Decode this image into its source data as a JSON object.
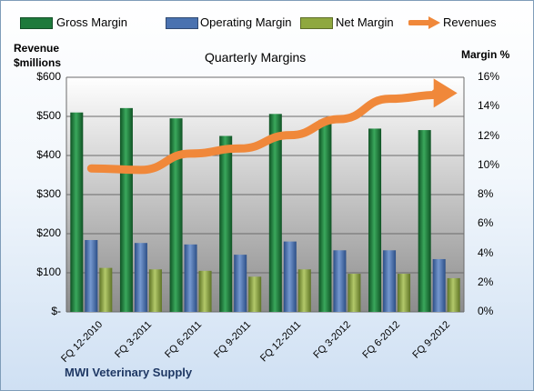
{
  "chart_data": {
    "type": "bar",
    "title": "Quarterly Margins",
    "company": "MWI Veterinary Supply",
    "categories": [
      "FQ 12-2010",
      "FQ 3-2011",
      "FQ 6-2011",
      "FQ 9-2011",
      "FQ 12-2011",
      "FQ 3-2012",
      "FQ 6-2012",
      "FQ 9-2012"
    ],
    "series": [
      {
        "name": "Gross Margin",
        "axis": "right",
        "color": "#1e7a3c",
        "values": [
          13.6,
          13.9,
          13.2,
          12.0,
          13.5,
          13.1,
          12.5,
          12.4
        ]
      },
      {
        "name": "Operating Margin",
        "axis": "right",
        "color": "#4a72b0",
        "values": [
          4.9,
          4.7,
          4.6,
          3.9,
          4.8,
          4.2,
          4.2,
          3.6
        ]
      },
      {
        "name": "Net Margin",
        "axis": "right",
        "color": "#8fa83f",
        "values": [
          3.0,
          2.9,
          2.8,
          2.4,
          2.9,
          2.6,
          2.6,
          2.3
        ]
      },
      {
        "name": "Revenues",
        "axis": "left",
        "type": "line",
        "color": "#f0883a",
        "values": [
          367,
          363,
          405,
          418,
          452,
          493,
          545,
          555
        ]
      }
    ],
    "ylabel_left": "Revenue $millions",
    "ylabel_right": "Margin %",
    "ylim_left": [
      0,
      600
    ],
    "ylim_right": [
      0,
      16
    ],
    "yticks_left": [
      "$-",
      "$100",
      "$200",
      "$300",
      "$400",
      "$500",
      "$600"
    ],
    "yticks_right": [
      "0%",
      "2%",
      "4%",
      "6%",
      "8%",
      "10%",
      "12%",
      "14%",
      "16%"
    ],
    "grid": true,
    "legend_position": "top"
  }
}
